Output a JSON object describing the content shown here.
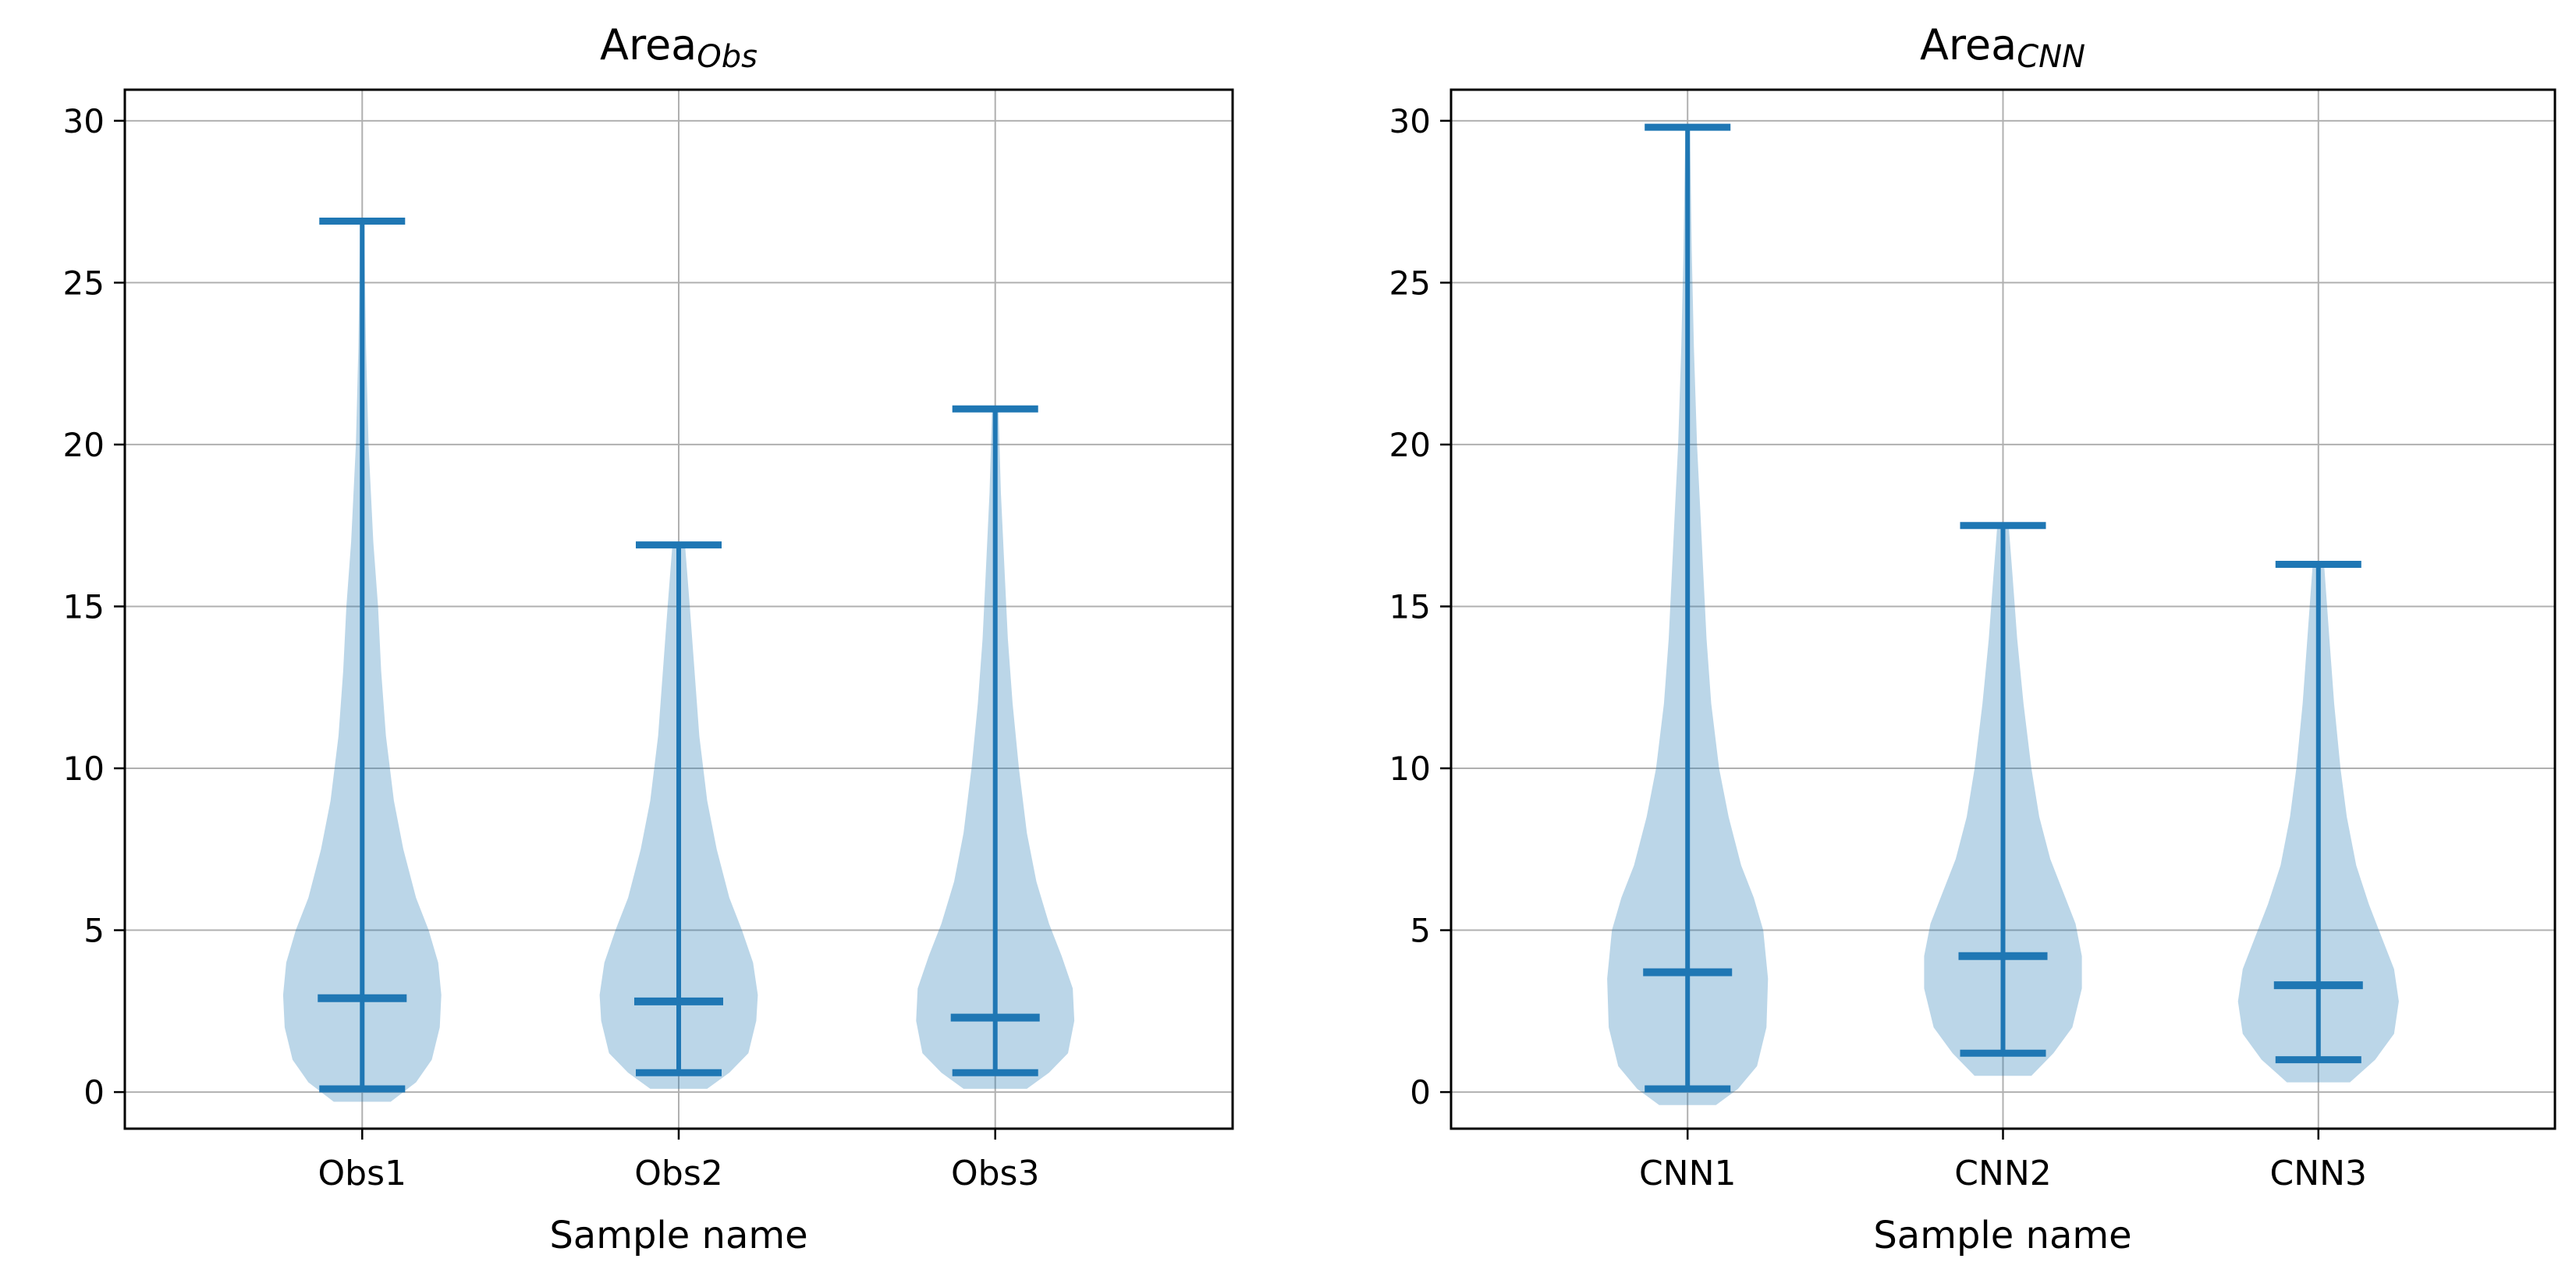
{
  "figure": {
    "background": "#ffffff"
  },
  "chart_data": [
    {
      "type": "violin",
      "title_parts": {
        "main": "Area",
        "subscript": "Obs"
      },
      "xlabel": "Sample name",
      "categories": [
        "Obs1",
        "Obs2",
        "Obs3"
      ],
      "yticks": [
        0,
        5,
        10,
        15,
        20,
        25,
        30
      ],
      "ylim": [
        -1.13,
        30.96
      ],
      "xlim": [
        0.25,
        3.75
      ],
      "grid": true,
      "legend": "none",
      "series": [
        {
          "name": "Obs1",
          "min": 0.1,
          "median": 2.9,
          "max": 26.9,
          "profile": [
            [
              -0.3,
              0.09
            ],
            [
              0.3,
              0.17
            ],
            [
              1.0,
              0.22
            ],
            [
              2.0,
              0.245
            ],
            [
              3.0,
              0.25
            ],
            [
              4.0,
              0.24
            ],
            [
              5.0,
              0.21
            ],
            [
              6.0,
              0.17
            ],
            [
              7.5,
              0.13
            ],
            [
              9.0,
              0.1
            ],
            [
              11,
              0.075
            ],
            [
              13,
              0.06
            ],
            [
              15,
              0.05
            ],
            [
              17,
              0.035
            ],
            [
              20,
              0.02
            ],
            [
              23,
              0.012
            ],
            [
              25,
              0.009
            ],
            [
              26.9,
              0.007
            ]
          ]
        },
        {
          "name": "Obs2",
          "min": 0.6,
          "median": 2.8,
          "max": 16.9,
          "profile": [
            [
              0.1,
              0.09
            ],
            [
              0.6,
              0.16
            ],
            [
              1.2,
              0.22
            ],
            [
              2.2,
              0.245
            ],
            [
              3.0,
              0.25
            ],
            [
              4.0,
              0.235
            ],
            [
              5.0,
              0.2
            ],
            [
              6.0,
              0.16
            ],
            [
              7.5,
              0.12
            ],
            [
              9.0,
              0.09
            ],
            [
              11,
              0.065
            ],
            [
              13,
              0.05
            ],
            [
              15,
              0.035
            ],
            [
              16.9,
              0.02
            ]
          ]
        },
        {
          "name": "Obs3",
          "min": 0.6,
          "median": 2.3,
          "max": 21.1,
          "profile": [
            [
              0.1,
              0.1
            ],
            [
              0.6,
              0.17
            ],
            [
              1.2,
              0.23
            ],
            [
              2.2,
              0.25
            ],
            [
              3.2,
              0.245
            ],
            [
              4.2,
              0.21
            ],
            [
              5.2,
              0.17
            ],
            [
              6.5,
              0.13
            ],
            [
              8,
              0.1
            ],
            [
              10,
              0.075
            ],
            [
              12,
              0.055
            ],
            [
              14,
              0.04
            ],
            [
              16,
              0.03
            ],
            [
              18.5,
              0.018
            ],
            [
              21.1,
              0.01
            ]
          ]
        }
      ],
      "colors": {
        "line": "#1f77b4",
        "fill": "rgba(31,119,180,0.30)",
        "grid": "#b0b0b0",
        "spine": "#000000",
        "text": "#000000"
      }
    },
    {
      "type": "violin",
      "title_parts": {
        "main": "Area",
        "subscript": "CNN"
      },
      "xlabel": "Sample name",
      "categories": [
        "CNN1",
        "CNN2",
        "CNN3"
      ],
      "yticks": [
        0,
        5,
        10,
        15,
        20,
        25,
        30
      ],
      "ylim": [
        -1.13,
        30.96
      ],
      "xlim": [
        0.25,
        3.75
      ],
      "grid": true,
      "legend": "none",
      "series": [
        {
          "name": "CNN1",
          "min": 0.1,
          "median": 3.7,
          "max": 29.8,
          "profile": [
            [
              -0.4,
              0.09
            ],
            [
              0.1,
              0.16
            ],
            [
              0.8,
              0.22
            ],
            [
              2.0,
              0.25
            ],
            [
              3.5,
              0.255
            ],
            [
              5.0,
              0.24
            ],
            [
              6.0,
              0.21
            ],
            [
              7.0,
              0.17
            ],
            [
              8.5,
              0.13
            ],
            [
              10,
              0.1
            ],
            [
              12,
              0.075
            ],
            [
              14,
              0.06
            ],
            [
              16,
              0.05
            ],
            [
              18,
              0.04
            ],
            [
              20,
              0.03
            ],
            [
              23,
              0.02
            ],
            [
              26,
              0.013
            ],
            [
              28,
              0.01
            ],
            [
              29.8,
              0.007
            ]
          ]
        },
        {
          "name": "CNN2",
          "min": 1.2,
          "median": 4.2,
          "max": 17.5,
          "profile": [
            [
              0.5,
              0.09
            ],
            [
              1.2,
              0.16
            ],
            [
              2.0,
              0.22
            ],
            [
              3.2,
              0.25
            ],
            [
              4.2,
              0.25
            ],
            [
              5.2,
              0.23
            ],
            [
              6.2,
              0.19
            ],
            [
              7.2,
              0.15
            ],
            [
              8.5,
              0.115
            ],
            [
              10,
              0.09
            ],
            [
              12,
              0.065
            ],
            [
              14,
              0.045
            ],
            [
              16,
              0.03
            ],
            [
              17.5,
              0.018
            ]
          ]
        },
        {
          "name": "CNN3",
          "min": 1.0,
          "median": 3.3,
          "max": 16.3,
          "profile": [
            [
              0.3,
              0.1
            ],
            [
              1.0,
              0.18
            ],
            [
              1.8,
              0.24
            ],
            [
              2.8,
              0.255
            ],
            [
              3.8,
              0.24
            ],
            [
              4.8,
              0.2
            ],
            [
              5.8,
              0.16
            ],
            [
              7.0,
              0.12
            ],
            [
              8.5,
              0.09
            ],
            [
              10,
              0.07
            ],
            [
              12,
              0.05
            ],
            [
              14,
              0.035
            ],
            [
              16.3,
              0.018
            ]
          ]
        }
      ],
      "colors": {
        "line": "#1f77b4",
        "fill": "rgba(31,119,180,0.30)",
        "grid": "#b0b0b0",
        "spine": "#000000",
        "text": "#000000"
      }
    }
  ]
}
